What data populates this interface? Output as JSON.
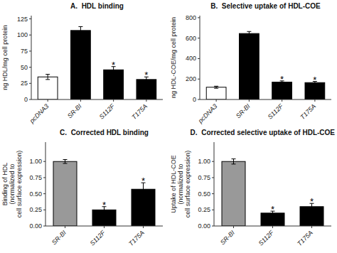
{
  "chart_data": [
    {
      "type": "bar",
      "title": "A.  HDL binding",
      "categories": [
        "pcDNA3",
        "SR-BI",
        "S112F",
        "T175A"
      ],
      "values": [
        35,
        107,
        46,
        31
      ],
      "errors": [
        4,
        6,
        5,
        4
      ],
      "colors": [
        "white",
        "black",
        "black",
        "black"
      ],
      "ylabel": "ng HDL/mg cell protein",
      "ylim": [
        0,
        130
      ],
      "yticks": [
        0,
        25,
        50,
        75,
        100,
        125
      ],
      "annotations": [
        {
          "category": "S112F",
          "text": "*"
        },
        {
          "category": "T175A",
          "text": "*"
        }
      ],
      "grid": false
    },
    {
      "type": "bar",
      "title": "B.  Selective uptake of HDL-COE",
      "categories": [
        "pcDNA3",
        "SR-BI",
        "S112F",
        "T175A"
      ],
      "values": [
        120,
        645,
        170,
        165
      ],
      "errors": [
        10,
        20,
        12,
        12
      ],
      "colors": [
        "white",
        "black",
        "black",
        "black"
      ],
      "ylabel": "ng HDL-COE/mg cell protein",
      "ylim": [
        0,
        820
      ],
      "yticks": [
        0,
        200,
        400,
        600,
        800
      ],
      "annotations": [
        {
          "category": "S112F",
          "text": "*"
        },
        {
          "category": "T175A",
          "text": "*"
        }
      ],
      "grid": false
    },
    {
      "type": "bar",
      "title": "C.  Corrected HDL binding",
      "categories": [
        "SR-BI",
        "S112F",
        "T175A"
      ],
      "values": [
        1.0,
        0.25,
        0.57
      ],
      "errors": [
        0.03,
        0.05,
        0.1
      ],
      "colors": [
        "#999999",
        "black",
        "black"
      ],
      "ylabel": "Binding of HDL\n(normalized to\ncell surface expression)",
      "ylim": [
        0,
        1.3
      ],
      "yticks": [
        {
          "value": 0,
          "label": "0.00"
        },
        {
          "value": 0.25,
          "label": "0.25"
        },
        {
          "value": 0.5,
          "label": "0.50"
        },
        {
          "value": 0.75,
          "label": "0.75"
        },
        {
          "value": 1,
          "label": "1.00"
        }
      ],
      "annotations": [
        {
          "category": "S112F",
          "text": "*"
        },
        {
          "category": "T175A",
          "text": "*"
        }
      ],
      "grid": false
    },
    {
      "type": "bar",
      "title": "D.  Corrected selective uptake of HDL-COE",
      "categories": [
        "SR-BI",
        "S112F",
        "T175A"
      ],
      "values": [
        1.0,
        0.2,
        0.3
      ],
      "errors": [
        0.04,
        0.03,
        0.05
      ],
      "colors": [
        "#999999",
        "black",
        "black"
      ],
      "ylabel": "Uptake of HDL-COE\n(normalized to\ncell surface expression)",
      "ylim": [
        0,
        1.3
      ],
      "yticks": [
        {
          "value": 0,
          "label": "0.00"
        },
        {
          "value": 0.25,
          "label": "0.25"
        },
        {
          "value": 0.5,
          "label": "0.50"
        },
        {
          "value": 0.75,
          "label": "0.75"
        },
        {
          "value": 1,
          "label": "1.00"
        }
      ],
      "annotations": [
        {
          "category": "S112F",
          "text": "*"
        },
        {
          "category": "T175A",
          "text": "*"
        }
      ],
      "grid": false
    }
  ]
}
